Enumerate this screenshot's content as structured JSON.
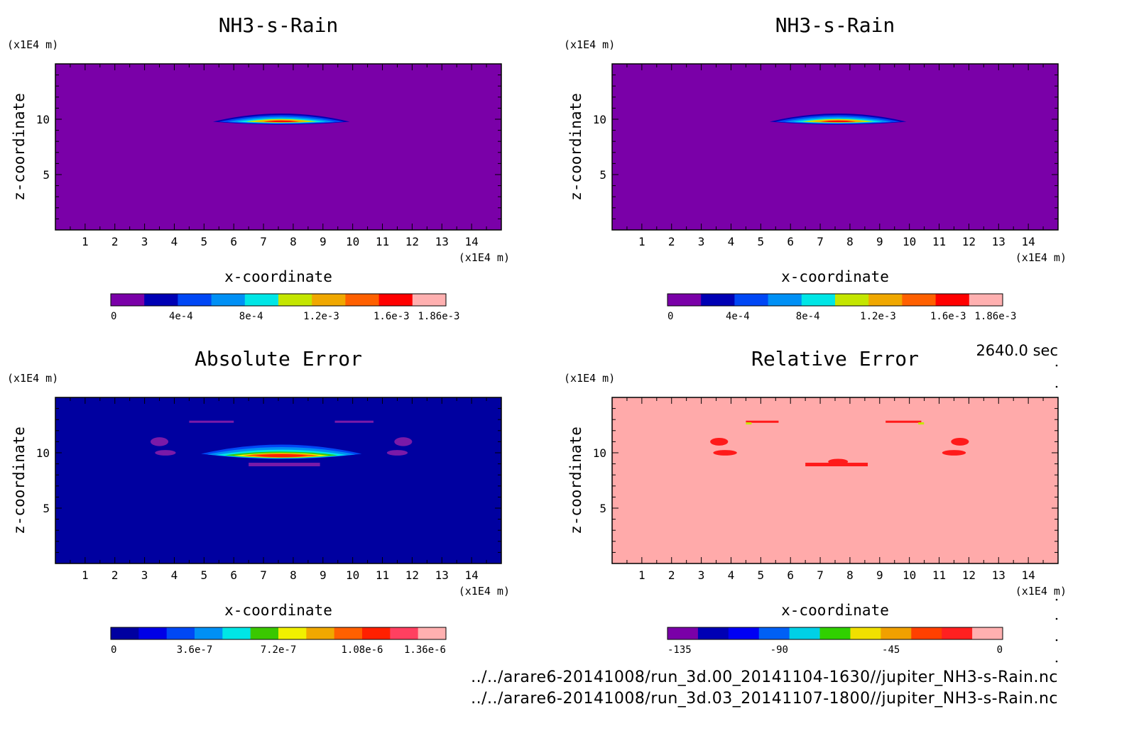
{
  "time_label": "2640.0 sec",
  "footer": [
    "../../arare6-20141008/run_3d.00_20141104-1630//jupiter_NH3-s-Rain.nc",
    "../../arare6-20141008/run_3d.03_20141107-1800//jupiter_NH3-s-Rain.nc"
  ],
  "colors": {
    "rain_scale": [
      "#7a00a8",
      "#0000b4",
      "#0047f5",
      "#0090f5",
      "#00e6e6",
      "#c4e600",
      "#f0a800",
      "#ff6000",
      "#ff0000",
      "#ffb0b0"
    ],
    "abs_scale": [
      "#0000a0",
      "#0000e6",
      "#0048f5",
      "#0090f5",
      "#00e6e6",
      "#3ac800",
      "#f0f000",
      "#f0a800",
      "#ff6000",
      "#ff2000",
      "#ff4060",
      "#ffb0b0"
    ],
    "rel_scale": [
      "#7a00a8",
      "#0000b4",
      "#0000f5",
      "#0060f5",
      "#00d0e6",
      "#30d000",
      "#f0e000",
      "#f0a000",
      "#ff4000",
      "#ff2020",
      "#ffb0b0"
    ]
  },
  "chart_data": [
    {
      "type": "heatmap",
      "title": "NH3-s-Rain",
      "xlabel": "x-coordinate",
      "ylabel": "z-coordinate",
      "x_unit": "(x1E4 m)",
      "y_unit": "(x1E4 m)",
      "xlim": [
        0,
        15
      ],
      "ylim": [
        0,
        15
      ],
      "x_ticks": [
        "1",
        "2",
        "3",
        "4",
        "5",
        "6",
        "7",
        "8",
        "9",
        "10",
        "11",
        "12",
        "13",
        "14"
      ],
      "y_ticks": [
        "5",
        "10"
      ],
      "background": "#7a00a8",
      "colorbar_labels": [
        "0",
        "4e-4",
        "8e-4",
        "1.2e-3",
        "1.6e-3",
        "1.86e-3"
      ],
      "cbar_key": "rain_scale",
      "feature": "rain-band"
    },
    {
      "type": "heatmap",
      "title": "NH3-s-Rain",
      "xlabel": "x-coordinate",
      "ylabel": "z-coordinate",
      "x_unit": "(x1E4 m)",
      "y_unit": "(x1E4 m)",
      "xlim": [
        0,
        15
      ],
      "ylim": [
        0,
        15
      ],
      "x_ticks": [
        "1",
        "2",
        "3",
        "4",
        "5",
        "6",
        "7",
        "8",
        "9",
        "10",
        "11",
        "12",
        "13",
        "14"
      ],
      "y_ticks": [
        "5",
        "10"
      ],
      "background": "#7a00a8",
      "colorbar_labels": [
        "0",
        "4e-4",
        "8e-4",
        "1.2e-3",
        "1.6e-3",
        "1.86e-3"
      ],
      "cbar_key": "rain_scale",
      "feature": "rain-band"
    },
    {
      "type": "heatmap",
      "title": "Absolute Error",
      "xlabel": "x-coordinate",
      "ylabel": "z-coordinate",
      "x_unit": "(x1E4 m)",
      "y_unit": "(x1E4 m)",
      "xlim": [
        0,
        15
      ],
      "ylim": [
        0,
        15
      ],
      "x_ticks": [
        "1",
        "2",
        "3",
        "4",
        "5",
        "6",
        "7",
        "8",
        "9",
        "10",
        "11",
        "12",
        "13",
        "14"
      ],
      "y_ticks": [
        "5",
        "10"
      ],
      "background": "#0000a0",
      "colorbar_labels": [
        "0",
        "3.6e-7",
        "7.2e-7",
        "1.08e-6",
        "1.36e-6"
      ],
      "cbar_key": "abs_scale",
      "feature": "abs-error"
    },
    {
      "type": "heatmap",
      "title": "Relative Error",
      "xlabel": "x-coordinate",
      "ylabel": "z-coordinate",
      "x_unit": "(x1E4 m)",
      "y_unit": "(x1E4 m)",
      "xlim": [
        0,
        15
      ],
      "ylim": [
        0,
        15
      ],
      "x_ticks": [
        "1",
        "2",
        "3",
        "4",
        "5",
        "6",
        "7",
        "8",
        "9",
        "10",
        "11",
        "12",
        "13",
        "14"
      ],
      "y_ticks": [
        "5",
        "10"
      ],
      "background": "#ffaaaa",
      "colorbar_labels": [
        "-135",
        "-90",
        "-45",
        "0"
      ],
      "cbar_key": "rel_scale",
      "feature": "rel-error"
    }
  ]
}
